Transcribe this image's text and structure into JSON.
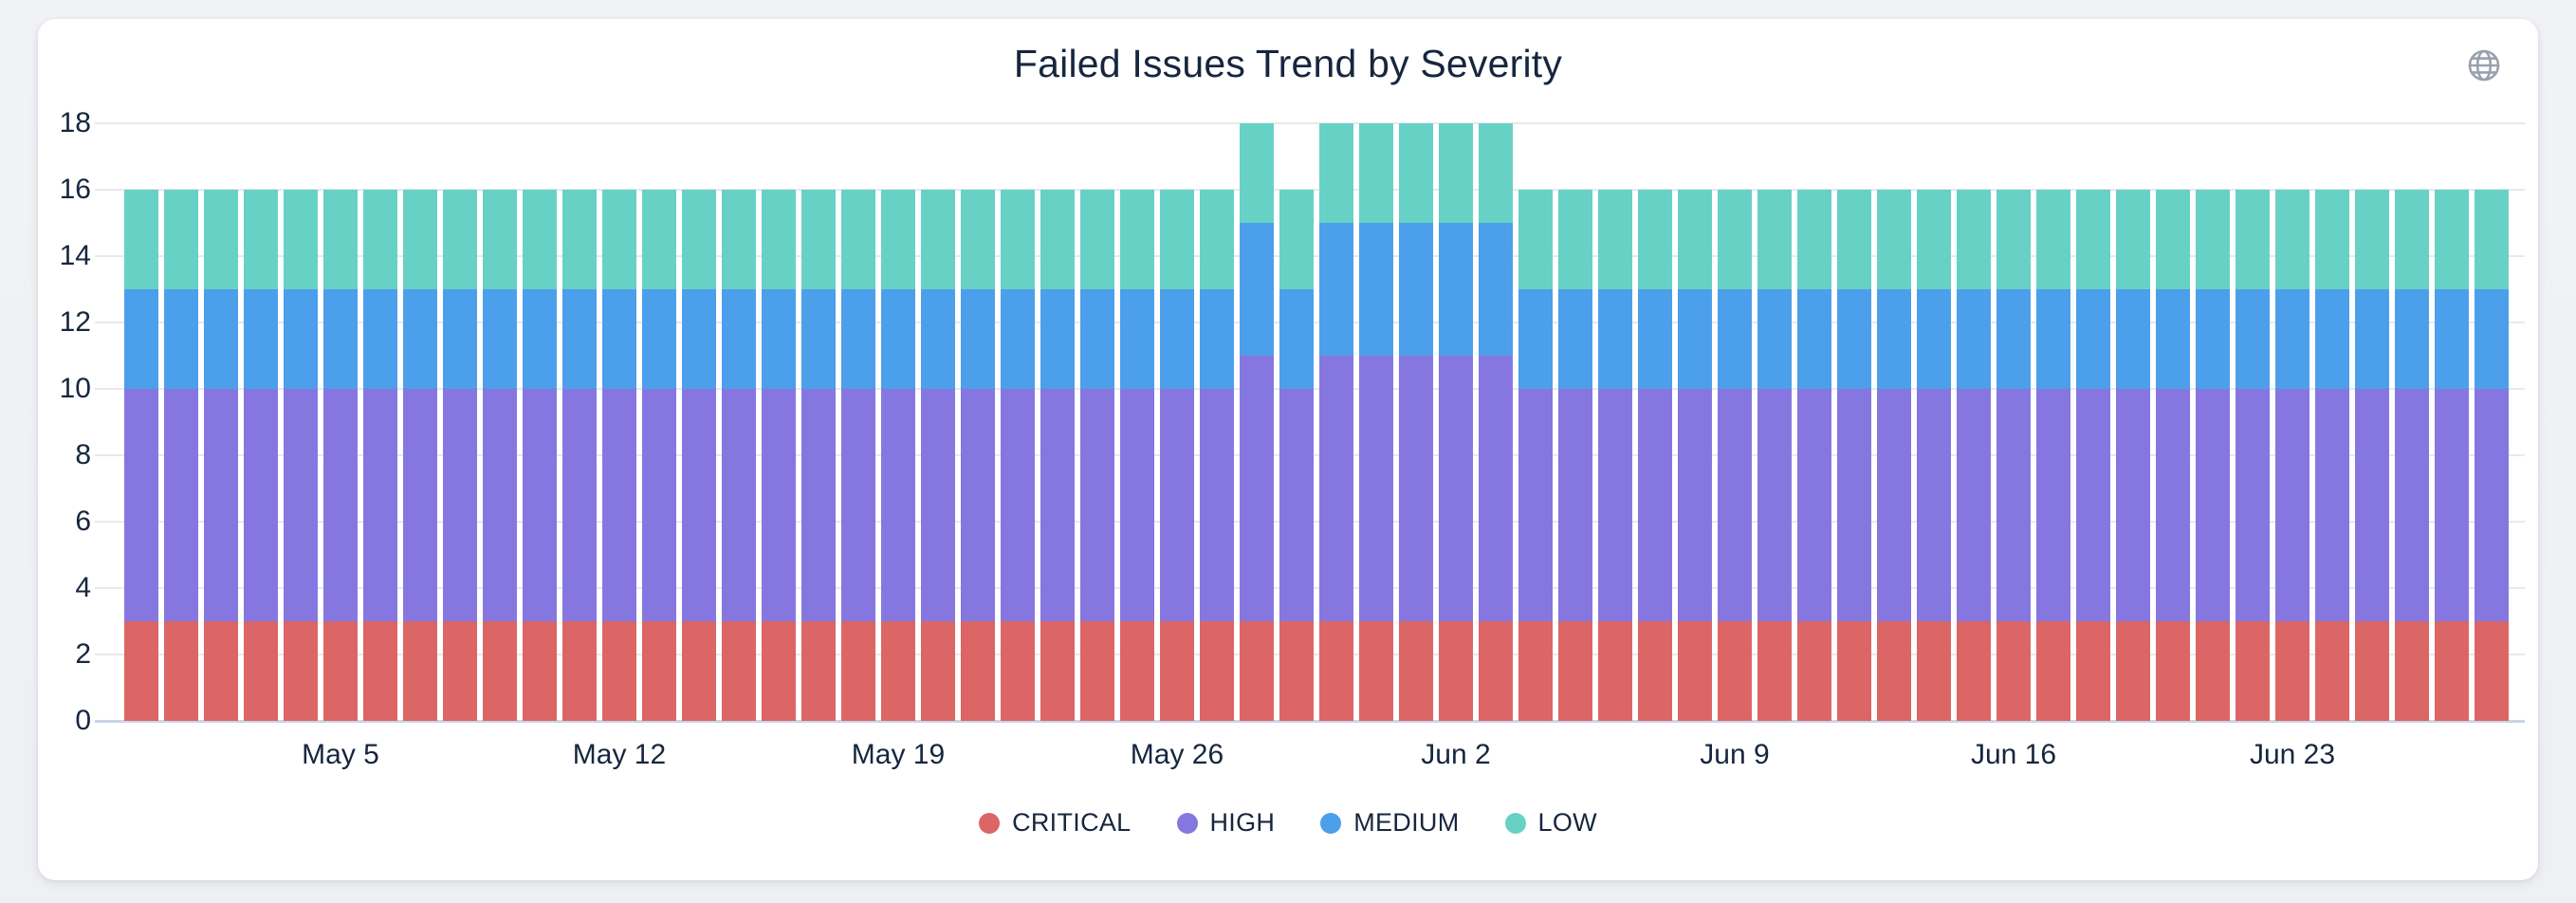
{
  "page": {
    "background": "#f0f2f5",
    "card_background": "#ffffff"
  },
  "header": {
    "icon": "globe",
    "icon_color": "#99a1ad"
  },
  "chart_data": {
    "type": "bar",
    "stacked": true,
    "title": "Failed Issues Trend by Severity",
    "xlabel": "",
    "ylabel": "",
    "ylim": [
      0,
      18
    ],
    "yticks": [
      0,
      2,
      4,
      6,
      8,
      10,
      12,
      14,
      16,
      18
    ],
    "grid": true,
    "legend_position": "bottom",
    "text_color": "#16263e",
    "gridline_color": "#e8e9ee",
    "baseline_color": "#ccd4e8",
    "x": [
      "Apr 30",
      "May 1",
      "May 2",
      "May 3",
      "May 4",
      "May 5",
      "May 6",
      "May 7",
      "May 8",
      "May 9",
      "May 10",
      "May 11",
      "May 12",
      "May 13",
      "May 14",
      "May 15",
      "May 16",
      "May 17",
      "May 18",
      "May 19",
      "May 20",
      "May 21",
      "May 22",
      "May 23",
      "May 24",
      "May 25",
      "May 26",
      "May 27",
      "May 28",
      "May 29",
      "May 30",
      "May 31",
      "Jun 1",
      "Jun 2",
      "Jun 3",
      "Jun 4",
      "Jun 5",
      "Jun 6",
      "Jun 7",
      "Jun 8",
      "Jun 9",
      "Jun 10",
      "Jun 11",
      "Jun 12",
      "Jun 13",
      "Jun 14",
      "Jun 15",
      "Jun 16",
      "Jun 17",
      "Jun 18",
      "Jun 19",
      "Jun 20",
      "Jun 21",
      "Jun 22",
      "Jun 23",
      "Jun 24",
      "Jun 25",
      "Jun 26",
      "Jun 27",
      "Jun 28"
    ],
    "xticks": [
      {
        "index": 5,
        "label": "May 5"
      },
      {
        "index": 12,
        "label": "May 12"
      },
      {
        "index": 19,
        "label": "May 19"
      },
      {
        "index": 26,
        "label": "May 26"
      },
      {
        "index": 33,
        "label": "Jun 2"
      },
      {
        "index": 40,
        "label": "Jun 9"
      },
      {
        "index": 47,
        "label": "Jun 16"
      },
      {
        "index": 54,
        "label": "Jun 23"
      }
    ],
    "series": [
      {
        "name": "CRITICAL",
        "color": "#dc6665",
        "values": [
          3,
          3,
          3,
          3,
          3,
          3,
          3,
          3,
          3,
          3,
          3,
          3,
          3,
          3,
          3,
          3,
          3,
          3,
          3,
          3,
          3,
          3,
          3,
          3,
          3,
          3,
          3,
          3,
          3,
          3,
          3,
          3,
          3,
          3,
          3,
          3,
          3,
          3,
          3,
          3,
          3,
          3,
          3,
          3,
          3,
          3,
          3,
          3,
          3,
          3,
          3,
          3,
          3,
          3,
          3,
          3,
          3,
          3,
          3,
          3
        ]
      },
      {
        "name": "HIGH",
        "color": "#8677e0",
        "values": [
          7,
          7,
          7,
          7,
          7,
          7,
          7,
          7,
          7,
          7,
          7,
          7,
          7,
          7,
          7,
          7,
          7,
          7,
          7,
          7,
          7,
          7,
          7,
          7,
          7,
          7,
          7,
          7,
          8,
          7,
          8,
          8,
          8,
          8,
          8,
          7,
          7,
          7,
          7,
          7,
          7,
          7,
          7,
          7,
          7,
          7,
          7,
          7,
          7,
          7,
          7,
          7,
          7,
          7,
          7,
          7,
          7,
          7,
          7,
          7
        ]
      },
      {
        "name": "MEDIUM",
        "color": "#4c9feb",
        "values": [
          3,
          3,
          3,
          3,
          3,
          3,
          3,
          3,
          3,
          3,
          3,
          3,
          3,
          3,
          3,
          3,
          3,
          3,
          3,
          3,
          3,
          3,
          3,
          3,
          3,
          3,
          3,
          3,
          4,
          3,
          4,
          4,
          4,
          4,
          4,
          3,
          3,
          3,
          3,
          3,
          3,
          3,
          3,
          3,
          3,
          3,
          3,
          3,
          3,
          3,
          3,
          3,
          3,
          3,
          3,
          3,
          3,
          3,
          3,
          3
        ]
      },
      {
        "name": "LOW",
        "color": "#68d1c5",
        "values": [
          3,
          3,
          3,
          3,
          3,
          3,
          3,
          3,
          3,
          3,
          3,
          3,
          3,
          3,
          3,
          3,
          3,
          3,
          3,
          3,
          3,
          3,
          3,
          3,
          3,
          3,
          3,
          3,
          3,
          3,
          3,
          3,
          3,
          3,
          3,
          3,
          3,
          3,
          3,
          3,
          3,
          3,
          3,
          3,
          3,
          3,
          3,
          3,
          3,
          3,
          3,
          3,
          3,
          3,
          3,
          3,
          3,
          3,
          3,
          3
        ]
      }
    ]
  }
}
